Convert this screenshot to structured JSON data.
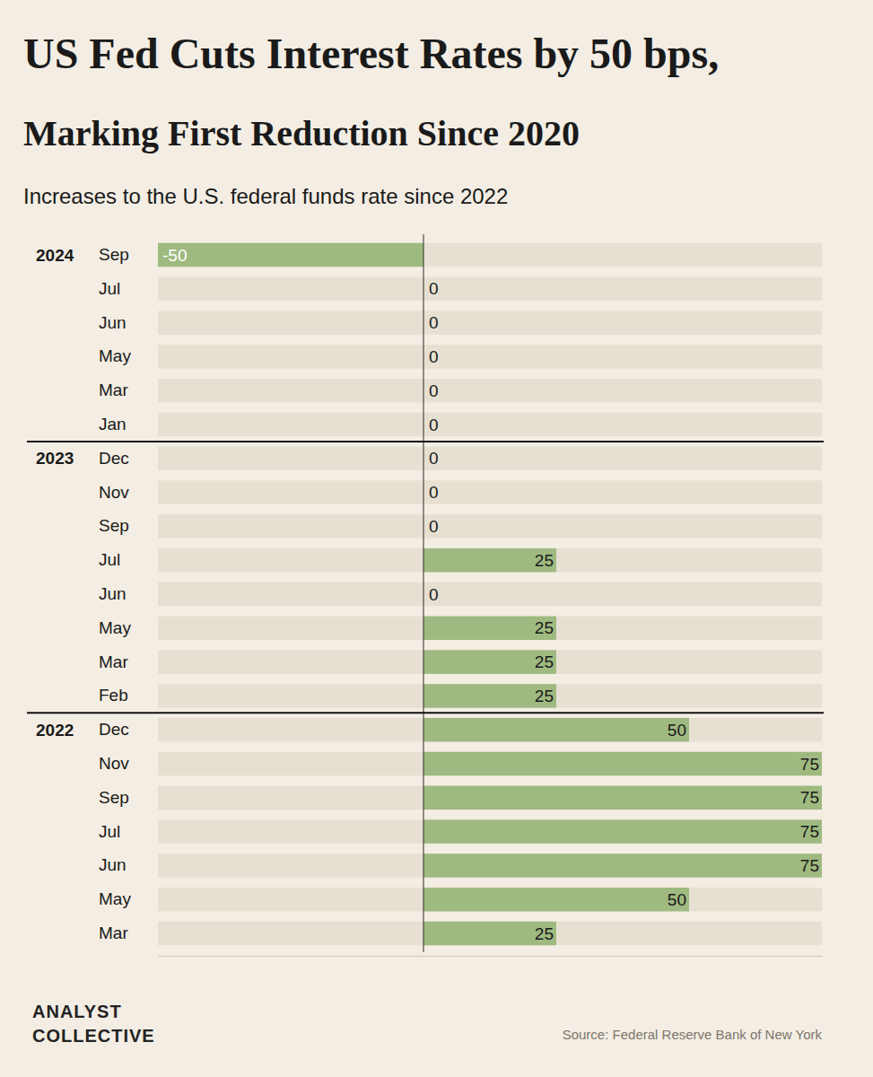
{
  "chart_data": {
    "type": "bar",
    "orientation": "horizontal",
    "title": "US Fed Cuts Interest Rates by 50 bps,",
    "subtitle": "Marking First Reduction Since 2020",
    "description": "Increases to the U.S. federal funds rate since 2022",
    "categories": [
      "Sep",
      "Jul",
      "Jun",
      "May",
      "Mar",
      "Jan",
      "Dec",
      "Nov",
      "Sep",
      "Jul",
      "Jun",
      "May",
      "Mar",
      "Feb",
      "Dec",
      "Nov",
      "Sep",
      "Jul",
      "Jun",
      "May",
      "Mar"
    ],
    "year_labels": [
      "2024",
      null,
      null,
      null,
      null,
      null,
      "2023",
      null,
      null,
      null,
      null,
      null,
      null,
      null,
      "2022",
      null,
      null,
      null,
      null,
      null,
      null
    ],
    "values": [
      -50,
      0,
      0,
      0,
      0,
      0,
      0,
      0,
      0,
      25,
      0,
      25,
      25,
      25,
      50,
      75,
      75,
      75,
      75,
      50,
      25
    ],
    "color": "#9fba80",
    "xlim": [
      -50,
      75
    ],
    "xticks": [],
    "tick_labels": false,
    "grid": false,
    "data_labels": true,
    "source": "Source: Federal Reserve Bank of New York",
    "logo": [
      "ANALYST",
      "COLLECTIVE"
    ]
  }
}
